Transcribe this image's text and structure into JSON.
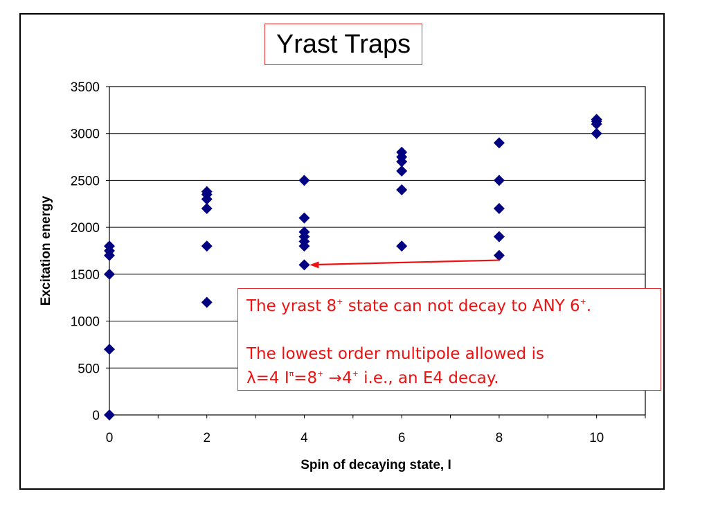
{
  "chart_data": {
    "type": "scatter",
    "title": "Yrast Traps",
    "xlabel": "Spin of decaying state, I",
    "ylabel": "Excitation energy",
    "xlim": [
      0,
      11
    ],
    "ylim": [
      0,
      3500
    ],
    "xticks": [
      0,
      2,
      4,
      6,
      8,
      10
    ],
    "yticks": [
      0,
      500,
      1000,
      1500,
      2000,
      2500,
      3000,
      3500
    ],
    "grid": "horizontal",
    "marker": "diamond",
    "marker_color": "#000080",
    "series": [
      {
        "points": [
          [
            0,
            0
          ],
          [
            0,
            700
          ],
          [
            0,
            1500
          ],
          [
            0,
            1700
          ],
          [
            0,
            1750
          ],
          [
            0,
            1800
          ],
          [
            2,
            1200
          ],
          [
            2,
            1800
          ],
          [
            2,
            2200
          ],
          [
            2,
            2300
          ],
          [
            2,
            2350
          ],
          [
            2,
            2380
          ],
          [
            4,
            1600
          ],
          [
            4,
            1800
          ],
          [
            4,
            1850
          ],
          [
            4,
            1900
          ],
          [
            4,
            1950
          ],
          [
            4,
            2100
          ],
          [
            4,
            2500
          ],
          [
            6,
            1800
          ],
          [
            6,
            2400
          ],
          [
            6,
            2600
          ],
          [
            6,
            2700
          ],
          [
            6,
            2750
          ],
          [
            6,
            2800
          ],
          [
            8,
            1700
          ],
          [
            8,
            1900
          ],
          [
            8,
            2200
          ],
          [
            8,
            2500
          ],
          [
            8,
            2900
          ],
          [
            10,
            3000
          ],
          [
            10,
            3100
          ],
          [
            10,
            3130
          ],
          [
            10,
            3150
          ]
        ]
      }
    ],
    "arrow": {
      "from": [
        8,
        1650
      ],
      "to": [
        4,
        1600
      ],
      "color": "#ee1111"
    }
  },
  "annotation": {
    "line1_a": "The yrast 8",
    "line1_sup1": "+",
    "line1_b": " state can not decay to ANY 6",
    "line1_sup2": "+",
    "line1_c": ".",
    "line2": "The lowest order multipole allowed is",
    "line3_a": "λ=4 I",
    "line3_sup1": "π",
    "line3_b": "=8",
    "line3_sup2": "+",
    "line3_c": " →4",
    "line3_sup3": "+",
    "line3_d": " i.e., an E4 decay.",
    "color": "#ee1111"
  }
}
